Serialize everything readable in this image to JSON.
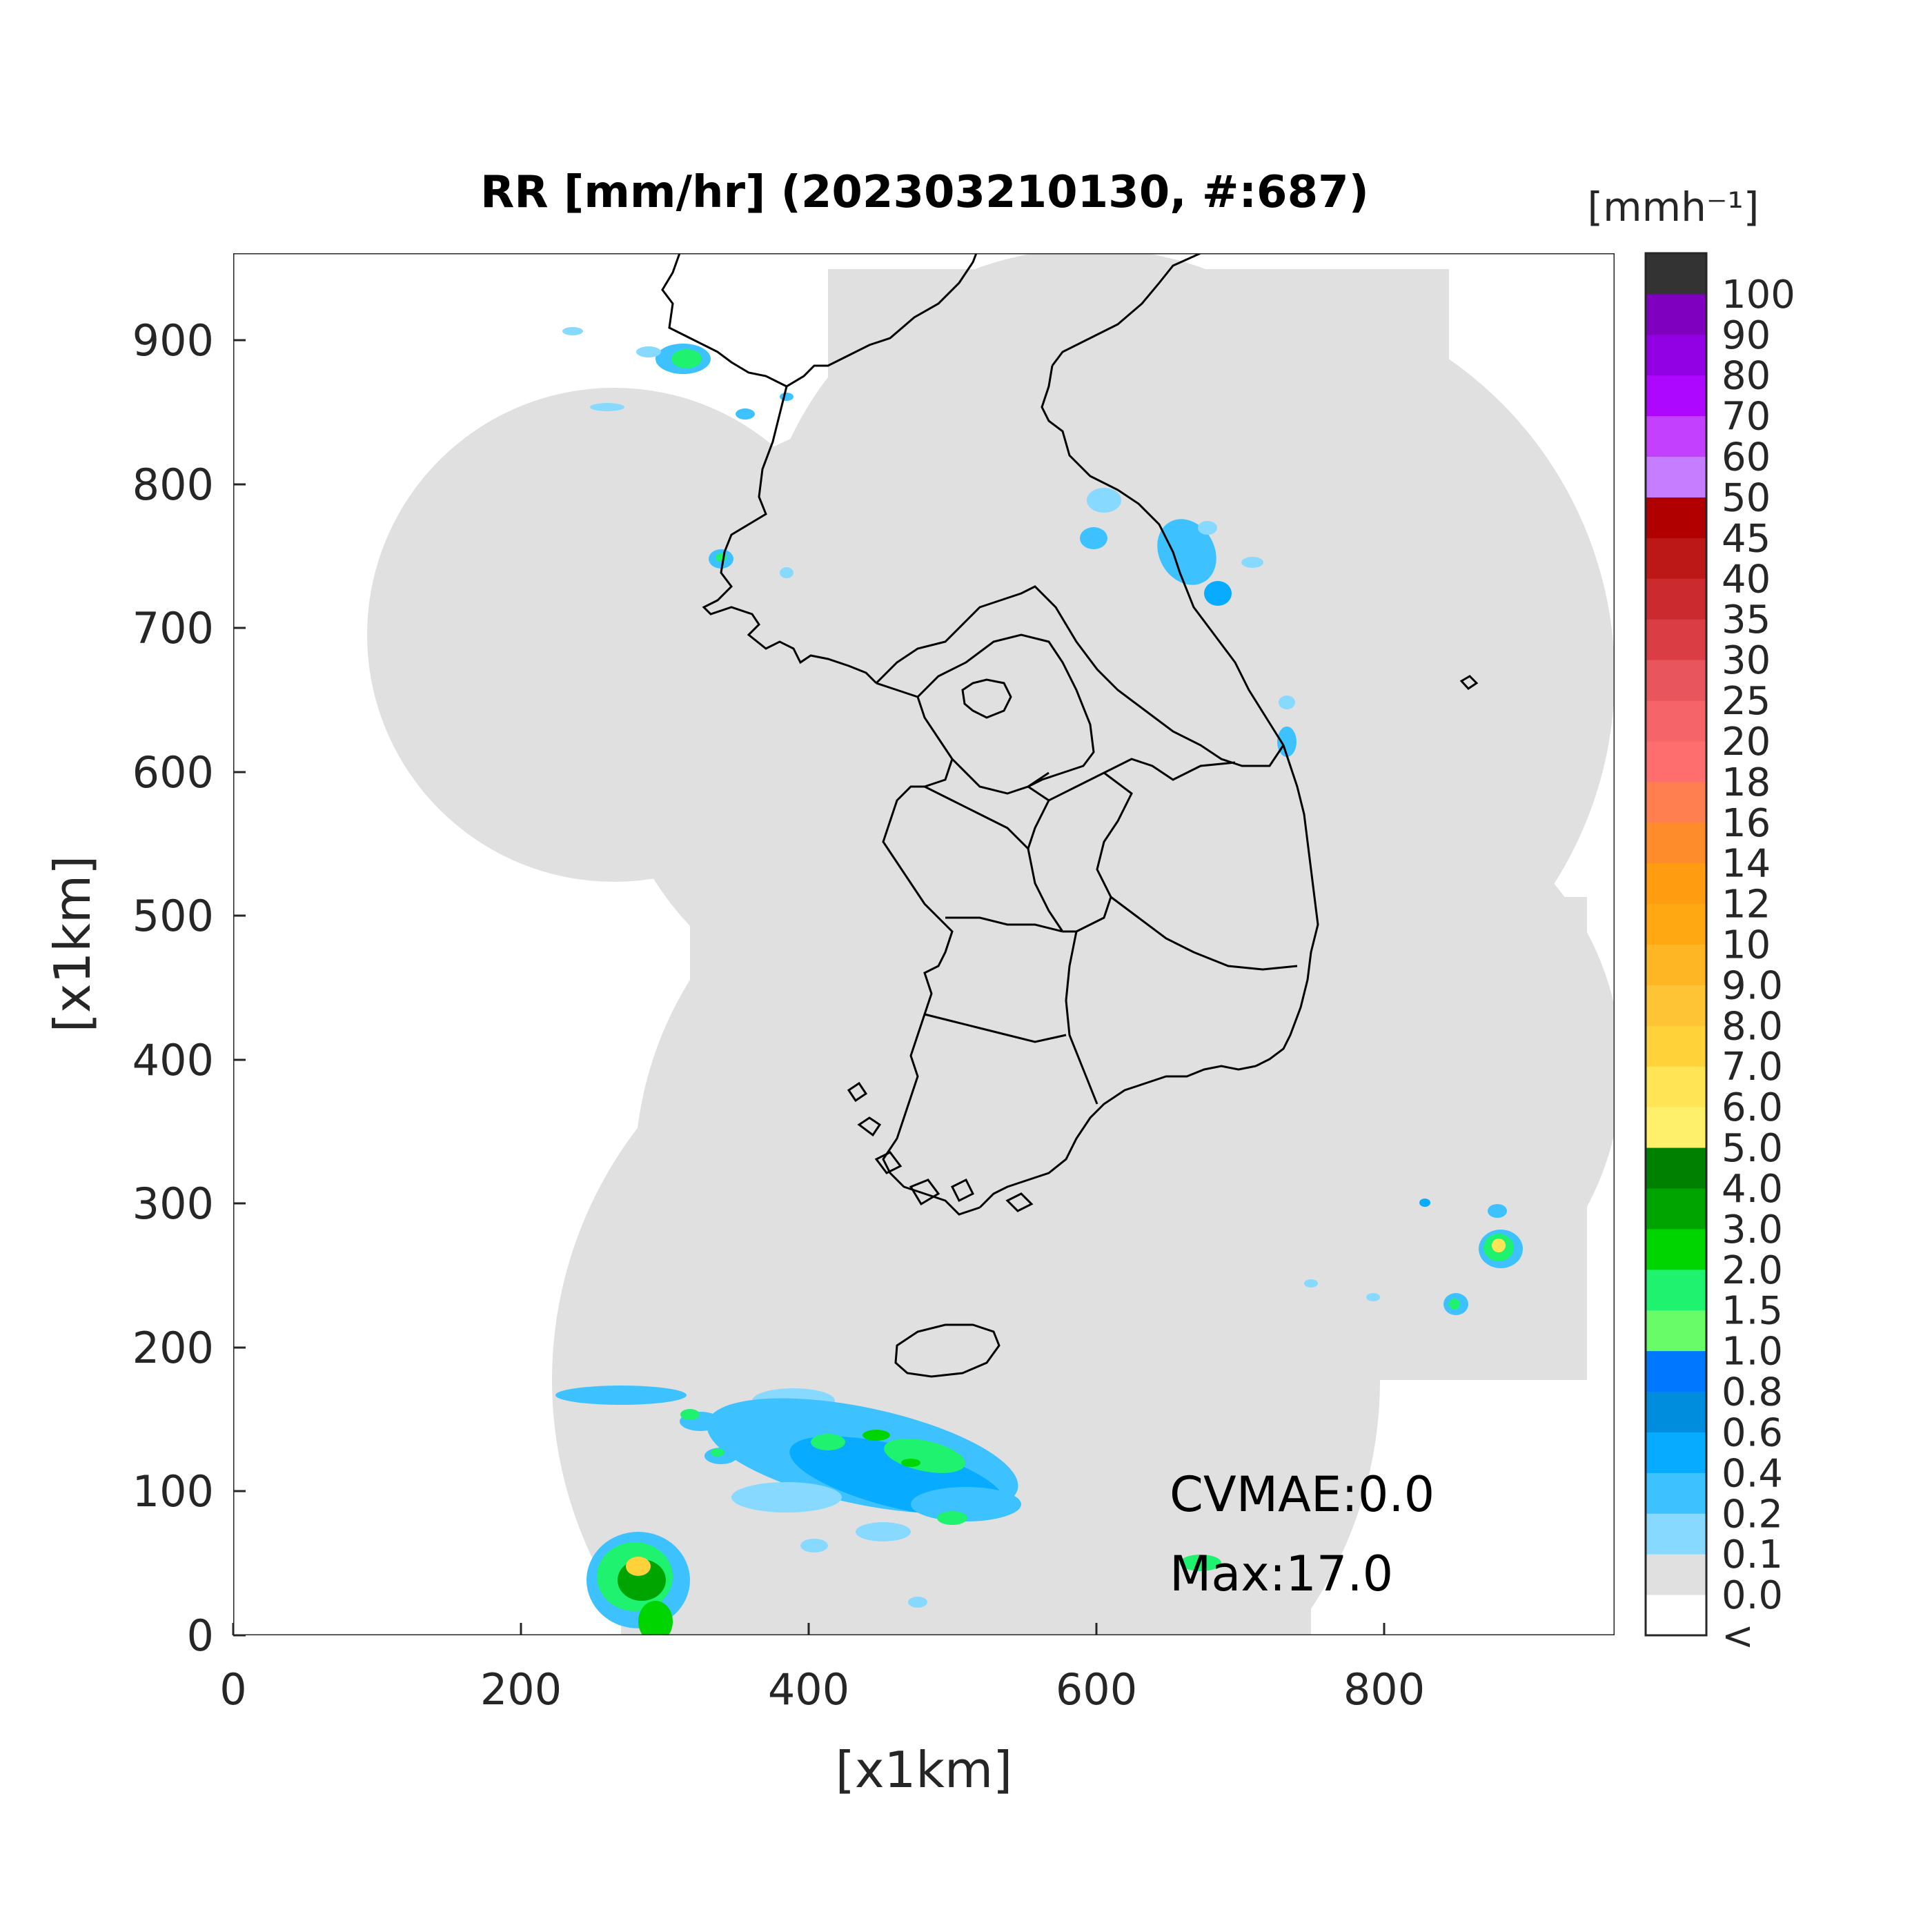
{
  "title": "RR [mm/hr] (202303210130, #:687)",
  "xlabel": "[x1km]",
  "ylabel": "[x1km]",
  "colorbar_unit": "[mmh⁻¹]",
  "annotations": {
    "cvmae": "CVMAE:0.0",
    "max": "Max:17.0"
  },
  "chart_data": {
    "type": "heatmap",
    "title": "RR [mm/hr] (202303210130, #:687)",
    "xlabel": "[x1km]",
    "ylabel": "[x1km]",
    "xlim": [
      0,
      960
    ],
    "ylim": [
      0,
      960
    ],
    "x_ticks": [
      "0",
      "200",
      "400",
      "600",
      "800"
    ],
    "y_ticks": [
      "0",
      "100",
      "200",
      "300",
      "400",
      "500",
      "600",
      "700",
      "800",
      "900"
    ],
    "x_tick_values": [
      0,
      200,
      400,
      600,
      800
    ],
    "y_tick_values": [
      0,
      100,
      200,
      300,
      400,
      500,
      600,
      700,
      800,
      900
    ],
    "colorbar": {
      "unit": "[mmh⁻¹]",
      "labels": [
        "<",
        "0.0",
        "0.1",
        "0.2",
        "0.4",
        "0.6",
        "0.8",
        "1.0",
        "1.5",
        "2.0",
        "3.0",
        "4.0",
        "5.0",
        "6.0",
        "7.0",
        "8.0",
        "9.0",
        "10",
        "12",
        "14",
        "16",
        "18",
        "20",
        "25",
        "30",
        "35",
        "40",
        "45",
        "50",
        "60",
        "70",
        "80",
        "90",
        "100"
      ],
      "colors": [
        "#ffffff",
        "#e0e0e0",
        "#87d9ff",
        "#3ec1ff",
        "#07abff",
        "#008dde",
        "#0077ff",
        "#69fc69",
        "#1ef26e",
        "#00d500",
        "#00a400",
        "#008000",
        "#fff06b",
        "#ffe556",
        "#ffd23a",
        "#ffc435",
        "#ffb625",
        "#ffa812",
        "#ff9c10",
        "#ff8c2a",
        "#ff7f50",
        "#ff6e6e",
        "#f56468",
        "#e8555c",
        "#da3d44",
        "#cb2a2e",
        "#bd1818",
        "#b00000",
        "#c77dff",
        "#c340ff",
        "#ad07ff",
        "#9200e4",
        "#7f00bf",
        "#333333"
      ]
    },
    "values": {
      "coverage_value": "0.0",
      "rain_areas": [
        {
          "region": "northwest",
          "max_class": "1.5"
        },
        {
          "region": "west coast",
          "max_class": "1.0"
        },
        {
          "region": "east coast",
          "max_class": "0.8"
        },
        {
          "region": "south sea band",
          "max_class": "2.0"
        },
        {
          "region": "southwest corner",
          "max_class": "8.0"
        },
        {
          "region": "southeast east sea",
          "max_class": "5.0"
        }
      ]
    }
  },
  "colors": {
    "coverage": "#e0e0e0",
    "border": "#000000",
    "background": "#ffffff"
  }
}
